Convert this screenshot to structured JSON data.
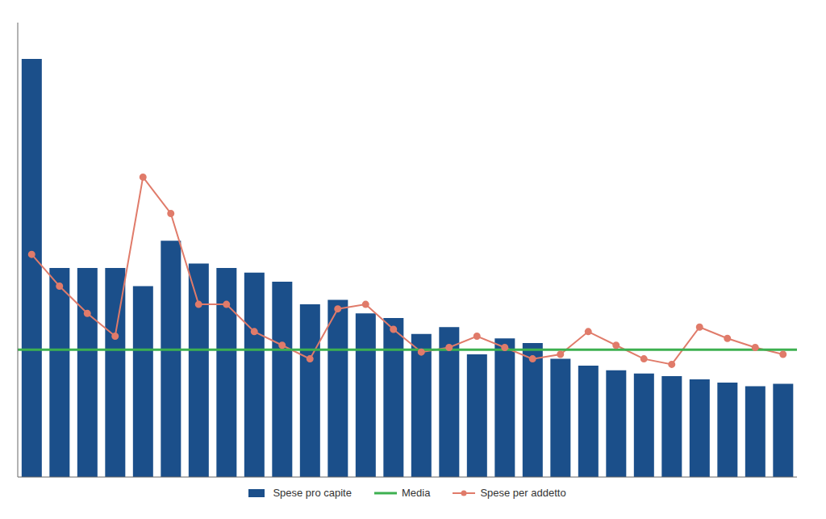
{
  "chart_data": {
    "type": "bar",
    "categories": [
      null,
      null,
      null,
      null,
      null,
      null,
      null,
      null,
      null,
      null,
      null,
      null,
      null,
      null,
      null,
      null,
      null,
      null,
      null,
      null,
      null,
      null,
      null,
      null,
      null,
      null,
      null,
      null
    ],
    "series": [
      {
        "name": "Spese pro capite",
        "type": "bar",
        "color": "#1B4F8A",
        "values": [
          920,
          460,
          460,
          460,
          420,
          520,
          470,
          460,
          450,
          430,
          380,
          390,
          360,
          350,
          315,
          330,
          270,
          305,
          295,
          260,
          245,
          235,
          228,
          222,
          215,
          208,
          200,
          205
        ]
      },
      {
        "name": "Media",
        "type": "hline",
        "color": "#3DB050",
        "y": 280
      },
      {
        "name": "Spese per addetto",
        "type": "line",
        "color": "#E07B6A",
        "marker": "circle",
        "values": [
          490,
          420,
          360,
          310,
          660,
          580,
          380,
          380,
          320,
          290,
          260,
          370,
          380,
          325,
          275,
          285,
          310,
          285,
          260,
          270,
          320,
          290,
          260,
          248,
          330,
          305,
          285,
          270
        ]
      }
    ],
    "ylim": [
      0,
      1000
    ],
    "yticks": [],
    "grid": false,
    "tick_labels": false,
    "legend": "bottom"
  }
}
